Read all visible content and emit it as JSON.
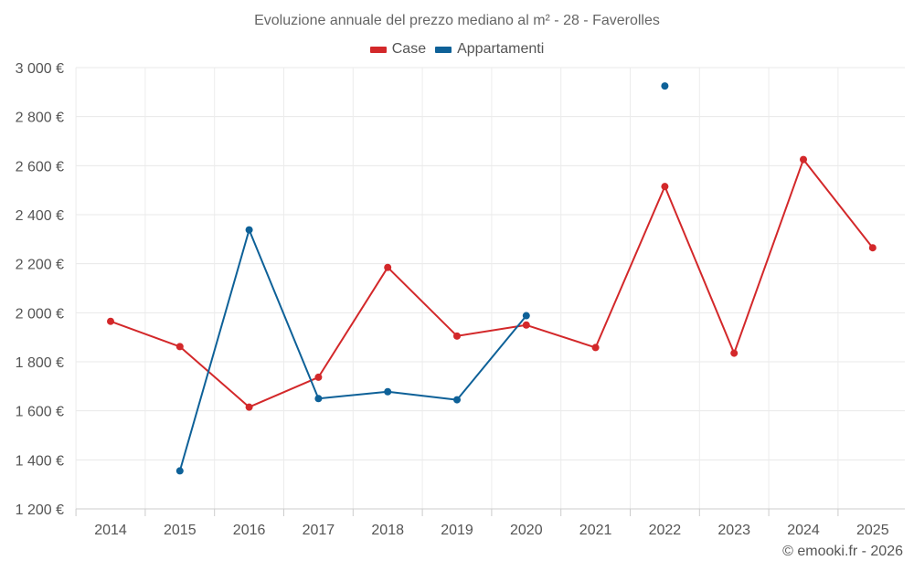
{
  "chart_data": {
    "type": "line",
    "title": "Evoluzione annuale del prezzo mediano al m² - 28 - Faverolles",
    "xlabel": "",
    "ylabel": "",
    "categories": [
      "2014",
      "2015",
      "2016",
      "2017",
      "2018",
      "2019",
      "2020",
      "2021",
      "2022",
      "2023",
      "2024",
      "2025"
    ],
    "ylim": [
      1200,
      3000
    ],
    "yticks": [
      1200,
      1400,
      1600,
      1800,
      2000,
      2200,
      2400,
      2600,
      2800,
      3000
    ],
    "ytick_labels": [
      "1 200 €",
      "1 400 €",
      "1 600 €",
      "1 800 €",
      "2 000 €",
      "2 200 €",
      "2 400 €",
      "2 600 €",
      "2 800 €",
      "3 000 €"
    ],
    "grid": true,
    "legend_position": "top-center",
    "series": [
      {
        "name": "Case",
        "color": "#d3282a",
        "values": [
          1965,
          1862,
          1615,
          1737,
          2185,
          1905,
          1950,
          1858,
          2515,
          1835,
          2625,
          2265
        ]
      },
      {
        "name": "Appartamenti",
        "color": "#0e6198",
        "values": [
          null,
          1355,
          2338,
          1650,
          1678,
          1645,
          1988,
          null,
          2925,
          null,
          null,
          null
        ]
      }
    ]
  },
  "credit": "© emooki.fr - 2026"
}
